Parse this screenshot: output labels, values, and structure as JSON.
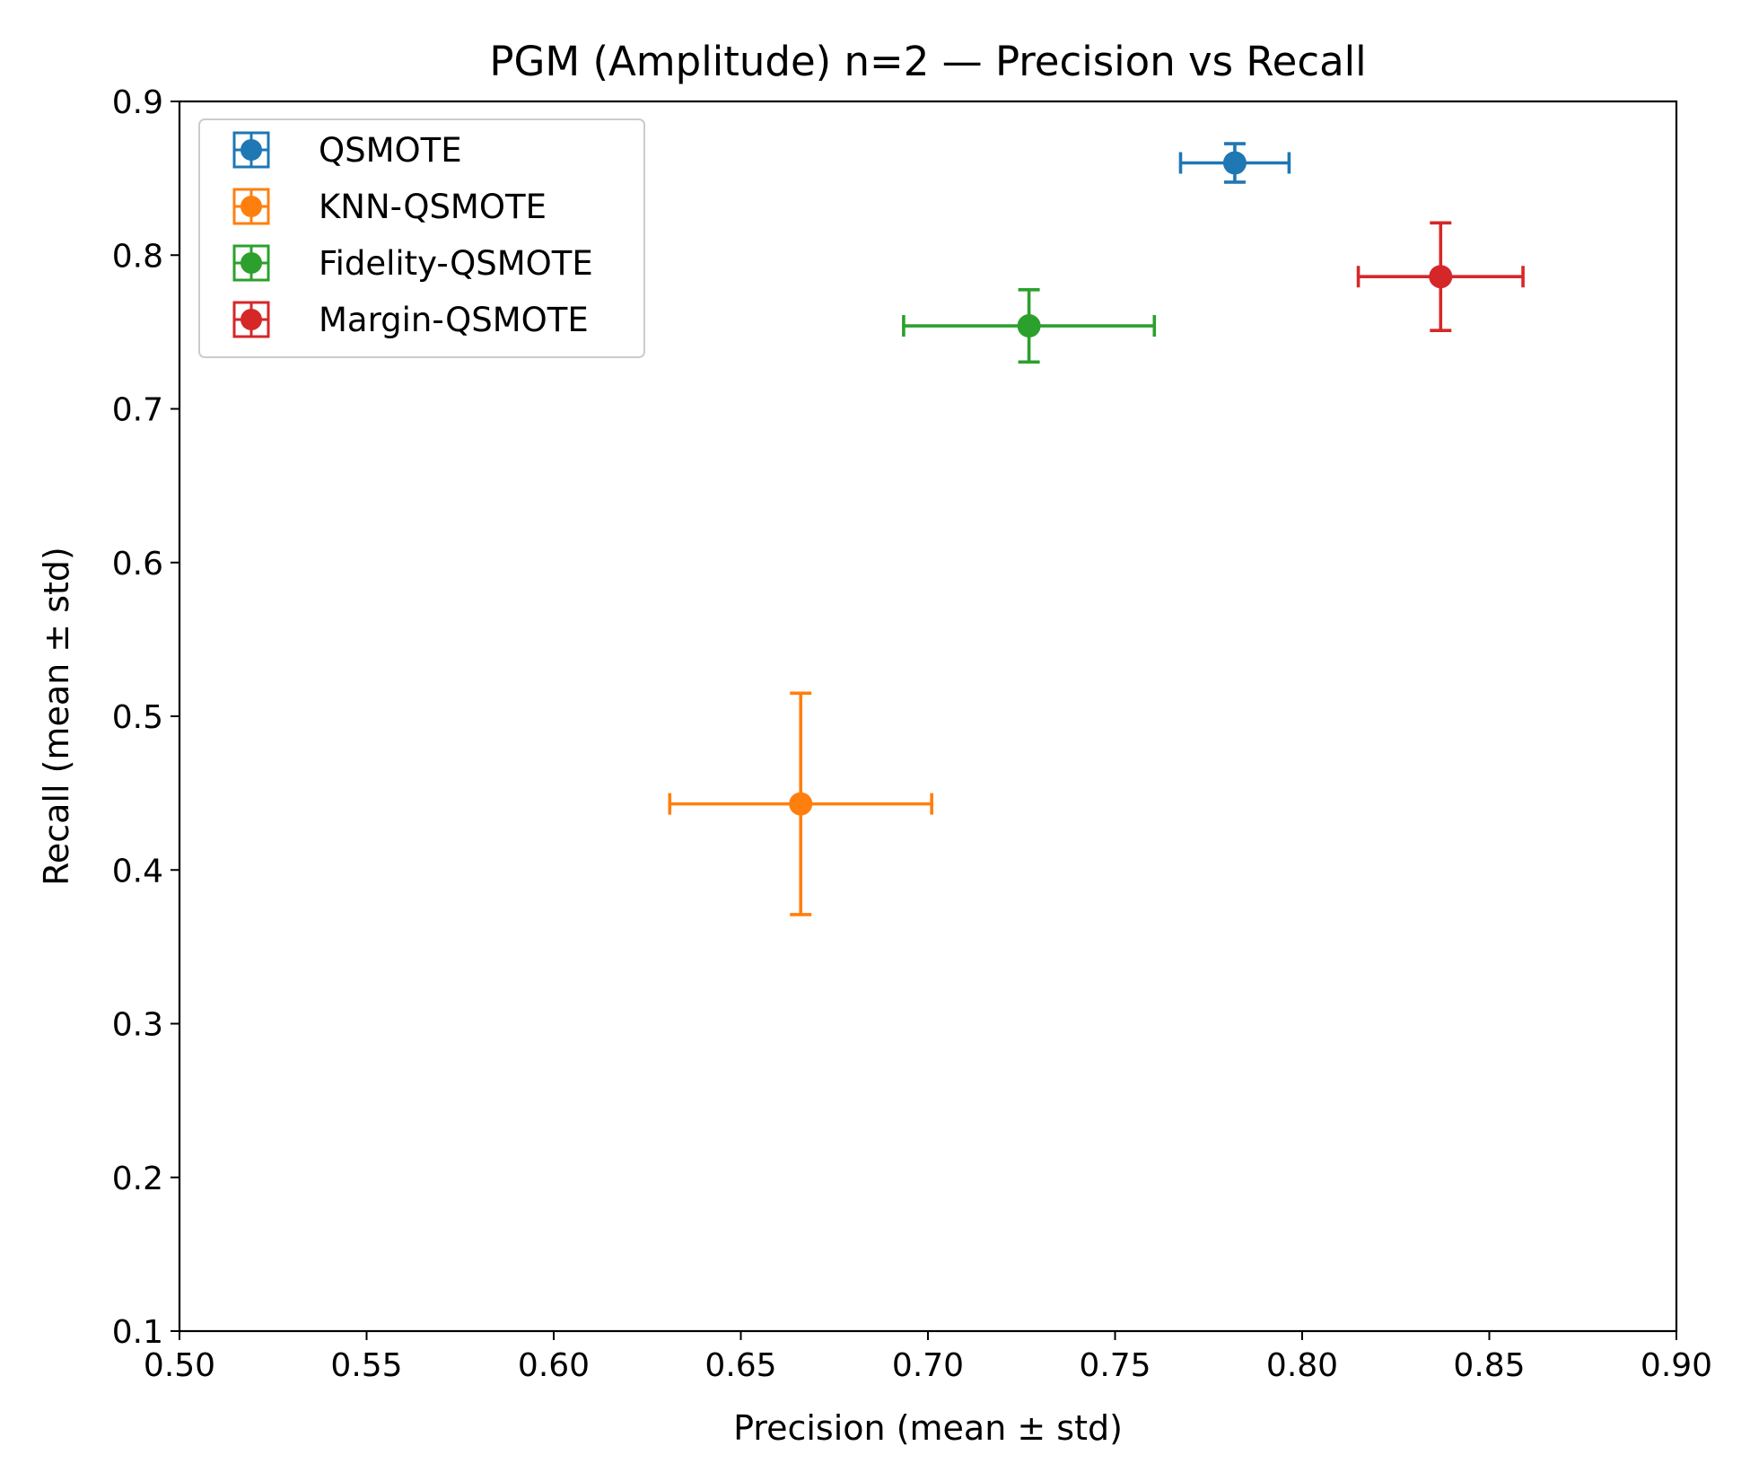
{
  "chart_data": {
    "type": "scatter",
    "title": "PGM (Amplitude) n=2 — Precision vs Recall",
    "xlabel": "Precision (mean ± std)",
    "ylabel": "Recall (mean ± std)",
    "xlim": [
      0.5,
      0.9
    ],
    "ylim": [
      0.1,
      0.9
    ],
    "xticks": [
      "0.50",
      "0.55",
      "0.60",
      "0.65",
      "0.70",
      "0.75",
      "0.80",
      "0.85",
      "0.90"
    ],
    "yticks": [
      "0.1",
      "0.2",
      "0.3",
      "0.4",
      "0.5",
      "0.6",
      "0.7",
      "0.8",
      "0.9"
    ],
    "grid": false,
    "legend_position": "top-left",
    "series": [
      {
        "name": "QSMOTE",
        "color": "#1f77b4",
        "x": 0.782,
        "y": 0.86,
        "xerr": 0.0145,
        "yerr": 0.0125
      },
      {
        "name": "KNN-QSMOTE",
        "color": "#ff7f0e",
        "x": 0.666,
        "y": 0.443,
        "xerr": 0.035,
        "yerr": 0.072
      },
      {
        "name": "Fidelity-QSMOTE",
        "color": "#2ca02c",
        "x": 0.727,
        "y": 0.754,
        "xerr": 0.0335,
        "yerr": 0.0235
      },
      {
        "name": "Margin-QSMOTE",
        "color": "#d62728",
        "x": 0.837,
        "y": 0.786,
        "xerr": 0.022,
        "yerr": 0.035
      }
    ]
  }
}
